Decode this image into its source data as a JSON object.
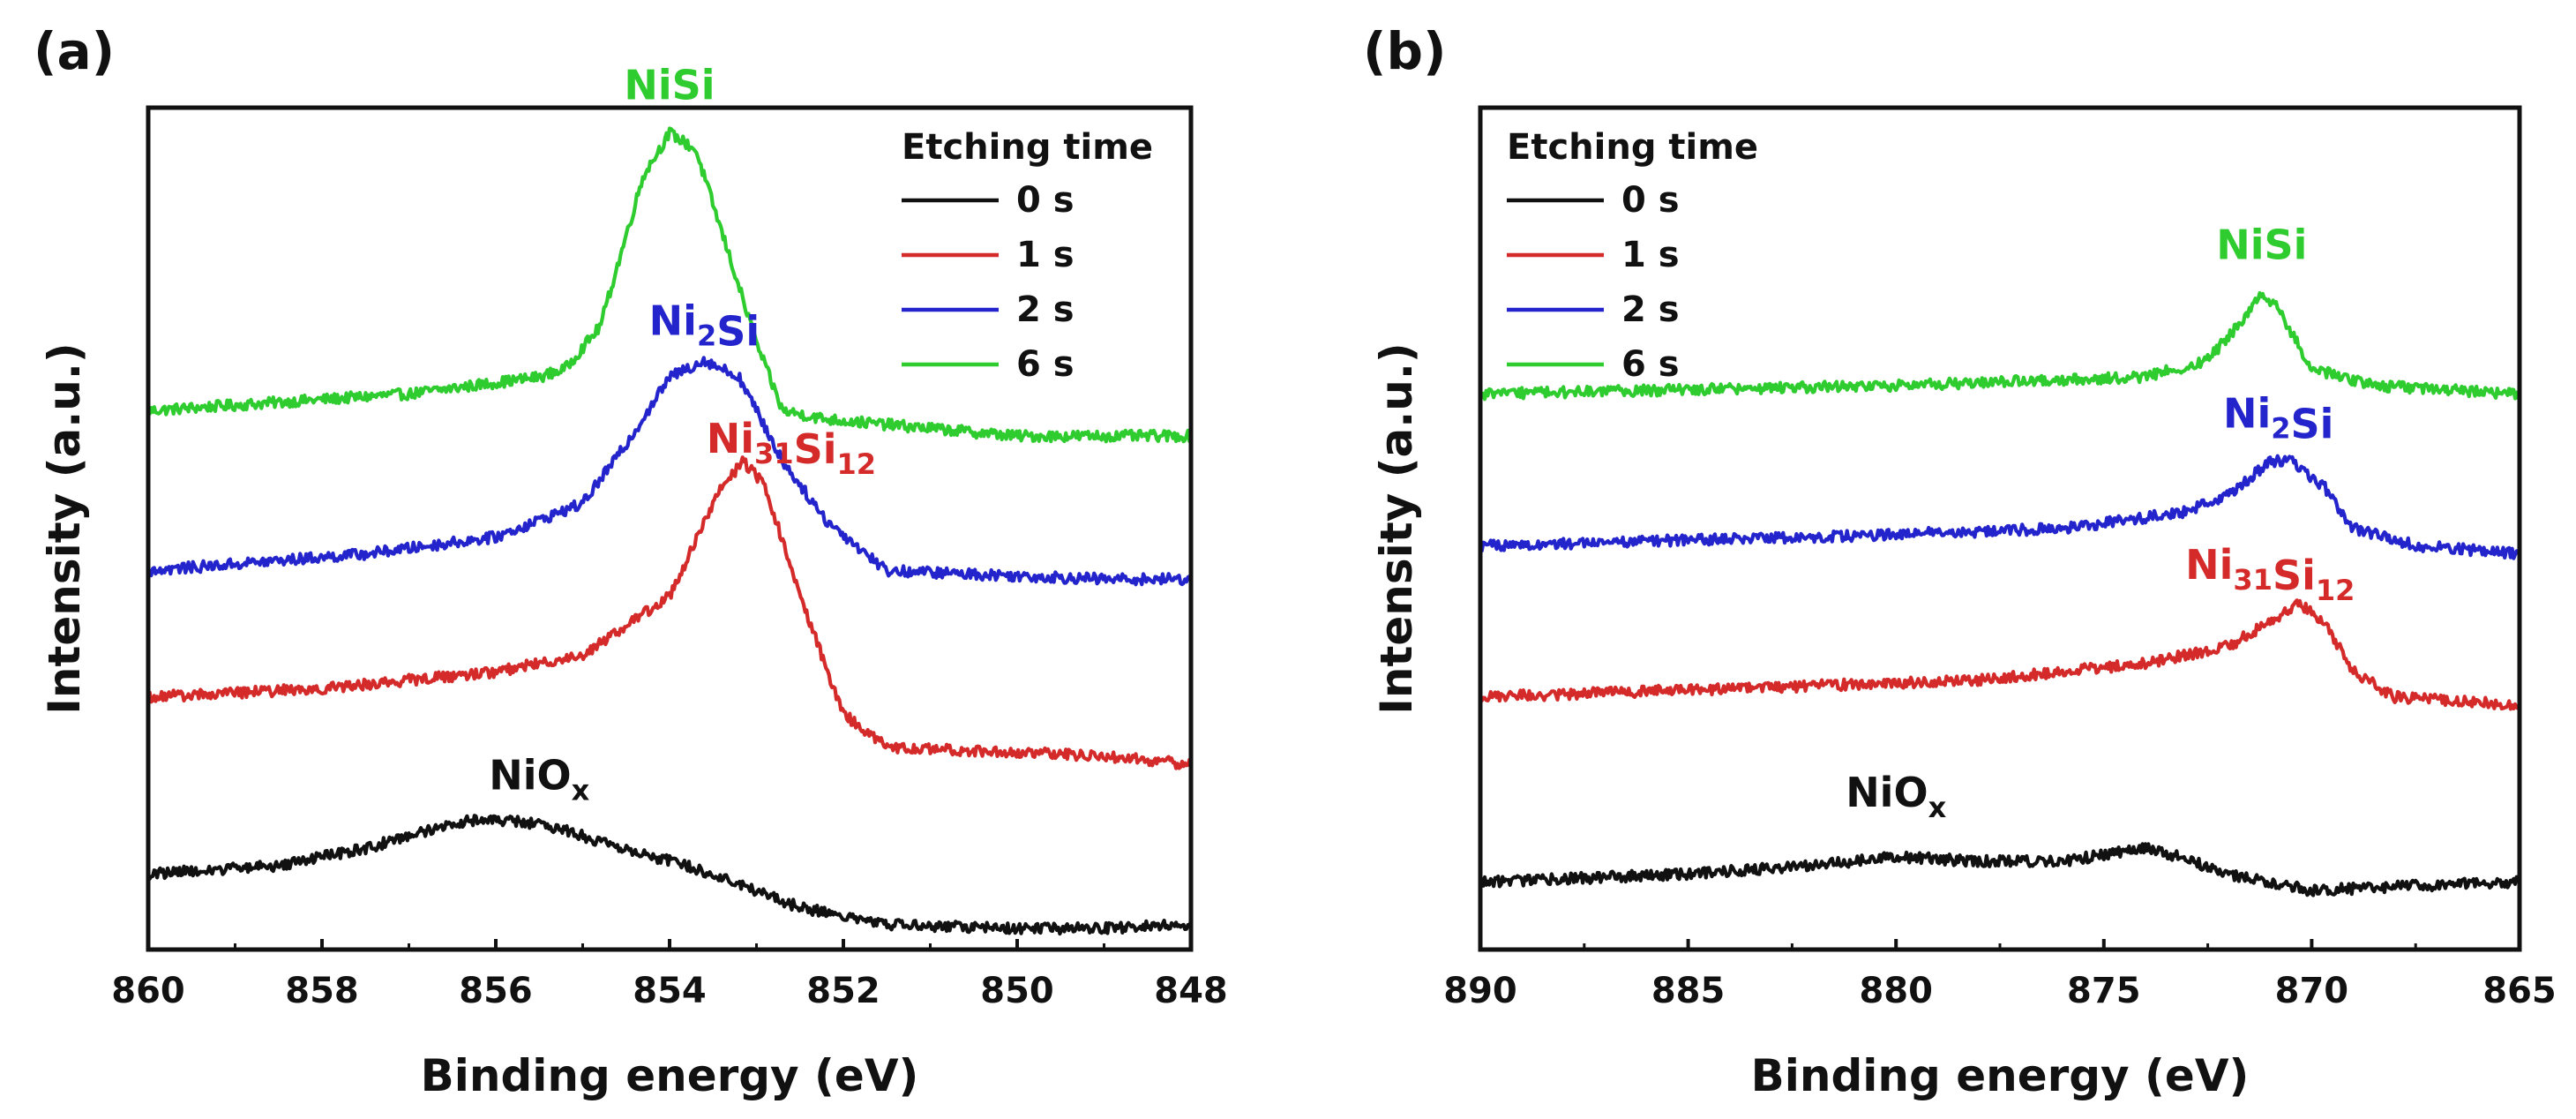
{
  "colors": {
    "0 s": "#111111",
    "1 s": "#d42a2a",
    "2 s": "#2424cc",
    "6 s": "#2ecc2e",
    "axis": "#111111",
    "label_nisi": "#2ecc2e",
    "label_ni2si": "#2424cc",
    "label_ni31si12": "#d42a2a",
    "label_niox": "#111111"
  },
  "chart_data": [
    {
      "panel_label": "(a)",
      "type": "line",
      "xlabel": "Binding energy (eV)",
      "ylabel": "Intensity (a.u.)",
      "xlim": [
        860,
        848
      ],
      "x_reversed": true,
      "xticks": [
        "860",
        "858",
        "856",
        "854",
        "852",
        "850",
        "848"
      ],
      "xtick_values": [
        860,
        858,
        856,
        854,
        852,
        850,
        848
      ],
      "ylim": [
        0,
        100
      ],
      "y_ticks_labeled": false,
      "legend": {
        "title": "Etching time",
        "position": "top-right",
        "entries": [
          "0 s",
          "1 s",
          "2 s",
          "6 s"
        ]
      },
      "series": [
        {
          "name": "6 s",
          "baseline": [
            [
              860,
              64
            ],
            [
              857,
              66
            ],
            [
              855.5,
              68
            ],
            [
              855.2,
              69
            ],
            [
              854.8,
              74
            ],
            [
              854.3,
              92
            ],
            [
              854.0,
              97
            ],
            [
              853.7,
              95
            ],
            [
              853.3,
              82
            ],
            [
              853.0,
              72
            ],
            [
              852.7,
              64
            ],
            [
              852.2,
              63
            ],
            [
              850,
              61
            ],
            [
              848,
              61
            ]
          ]
        },
        {
          "name": "2 s",
          "baseline": [
            [
              860,
              45
            ],
            [
              857.5,
              47
            ],
            [
              856,
              49
            ],
            [
              855,
              53
            ],
            [
              854.5,
              60
            ],
            [
              854.0,
              68
            ],
            [
              853.6,
              70
            ],
            [
              853.2,
              68
            ],
            [
              852.7,
              58
            ],
            [
              852.2,
              51
            ],
            [
              851.5,
              45
            ],
            [
              849,
              44
            ],
            [
              848,
              44
            ]
          ]
        },
        {
          "name": "1 s",
          "baseline": [
            [
              860,
              30
            ],
            [
              858,
              31
            ],
            [
              856,
              33
            ],
            [
              855,
              35
            ],
            [
              854,
              42
            ],
            [
              853.4,
              55
            ],
            [
              853.15,
              58
            ],
            [
              852.9,
              55
            ],
            [
              852.5,
              42
            ],
            [
              852.0,
              28
            ],
            [
              851.5,
              24
            ],
            [
              849,
              23
            ],
            [
              848,
              22
            ]
          ]
        },
        {
          "name": "0 s",
          "baseline": [
            [
              860,
              9
            ],
            [
              858.5,
              10
            ],
            [
              857.5,
              12
            ],
            [
              856.5,
              15
            ],
            [
              856.2,
              15.5
            ],
            [
              855.5,
              15
            ],
            [
              854.5,
              12
            ],
            [
              853.5,
              9
            ],
            [
              852.5,
              5
            ],
            [
              851.5,
              3
            ],
            [
              850,
              2.5
            ],
            [
              849,
              2.5
            ],
            [
              848,
              3
            ]
          ]
        }
      ],
      "annotations": [
        {
          "text": "NiSi",
          "kind": "nisi",
          "x": 854.0,
          "y": 101
        },
        {
          "text": "Ni",
          "sub": "2",
          "text2": "Si",
          "kind": "ni2si",
          "x": 853.6,
          "y": 73
        },
        {
          "text": "Ni",
          "sub": "31",
          "text2": "Si",
          "sub2": "12",
          "kind": "ni31si12",
          "x": 852.6,
          "y": 59
        },
        {
          "text": "NiO",
          "sub": "x",
          "kind": "niox",
          "x": 855.5,
          "y": 19
        }
      ]
    },
    {
      "panel_label": "(b)",
      "type": "line",
      "xlabel": "Binding energy (eV)",
      "ylabel": "Intensity (a.u.)",
      "xlim": [
        890,
        865
      ],
      "x_reversed": true,
      "xticks": [
        "890",
        "885",
        "880",
        "875",
        "870",
        "865"
      ],
      "xtick_values": [
        890,
        885,
        880,
        875,
        870,
        865
      ],
      "ylim": [
        0,
        100
      ],
      "y_ticks_labeled": false,
      "legend": {
        "title": "Etching time",
        "position": "top-left",
        "entries": [
          "0 s",
          "1 s",
          "2 s",
          "6 s"
        ]
      },
      "series": [
        {
          "name": "6 s",
          "baseline": [
            [
              890,
              66
            ],
            [
              880,
              67
            ],
            [
              874,
              68
            ],
            [
              872.5,
              70
            ],
            [
              871.8,
              74
            ],
            [
              871.2,
              78
            ],
            [
              870.8,
              76
            ],
            [
              870,
              69
            ],
            [
              868.5,
              67
            ],
            [
              865,
              66
            ]
          ]
        },
        {
          "name": "2 s",
          "baseline": [
            [
              890,
              48
            ],
            [
              882,
              49
            ],
            [
              876,
              50
            ],
            [
              873,
              52
            ],
            [
              872,
              54
            ],
            [
              871,
              58
            ],
            [
              870.5,
              58
            ],
            [
              869.7,
              55
            ],
            [
              869,
              50
            ],
            [
              867.5,
              48
            ],
            [
              865,
              47
            ]
          ]
        },
        {
          "name": "1 s",
          "baseline": [
            [
              890,
              30
            ],
            [
              884,
              31
            ],
            [
              878,
              32
            ],
            [
              874,
              34
            ],
            [
              872,
              36
            ],
            [
              871,
              39
            ],
            [
              870.3,
              41
            ],
            [
              869.7,
              39
            ],
            [
              869,
              33
            ],
            [
              868,
              30
            ],
            [
              865,
              29
            ]
          ]
        },
        {
          "name": "0 s",
          "baseline": [
            [
              890,
              8
            ],
            [
              885,
              9
            ],
            [
              882,
              10
            ],
            [
              880,
              11
            ],
            [
              878,
              10.5
            ],
            [
              876,
              10.5
            ],
            [
              874,
              12
            ],
            [
              873.5,
              11.5
            ],
            [
              872,
              9
            ],
            [
              870,
              7
            ],
            [
              868,
              7.5
            ],
            [
              865,
              8
            ]
          ]
        }
      ],
      "annotations": [
        {
          "text": "NiSi",
          "kind": "nisi",
          "x": 871.2,
          "y": 82
        },
        {
          "text": "Ni",
          "sub": "2",
          "text2": "Si",
          "kind": "ni2si",
          "x": 870.8,
          "y": 62
        },
        {
          "text": "Ni",
          "sub": "31",
          "text2": "Si",
          "sub2": "12",
          "kind": "ni31si12",
          "x": 871.0,
          "y": 44
        },
        {
          "text": "NiO",
          "sub": "x",
          "kind": "niox",
          "x": 880.0,
          "y": 17
        }
      ]
    }
  ]
}
